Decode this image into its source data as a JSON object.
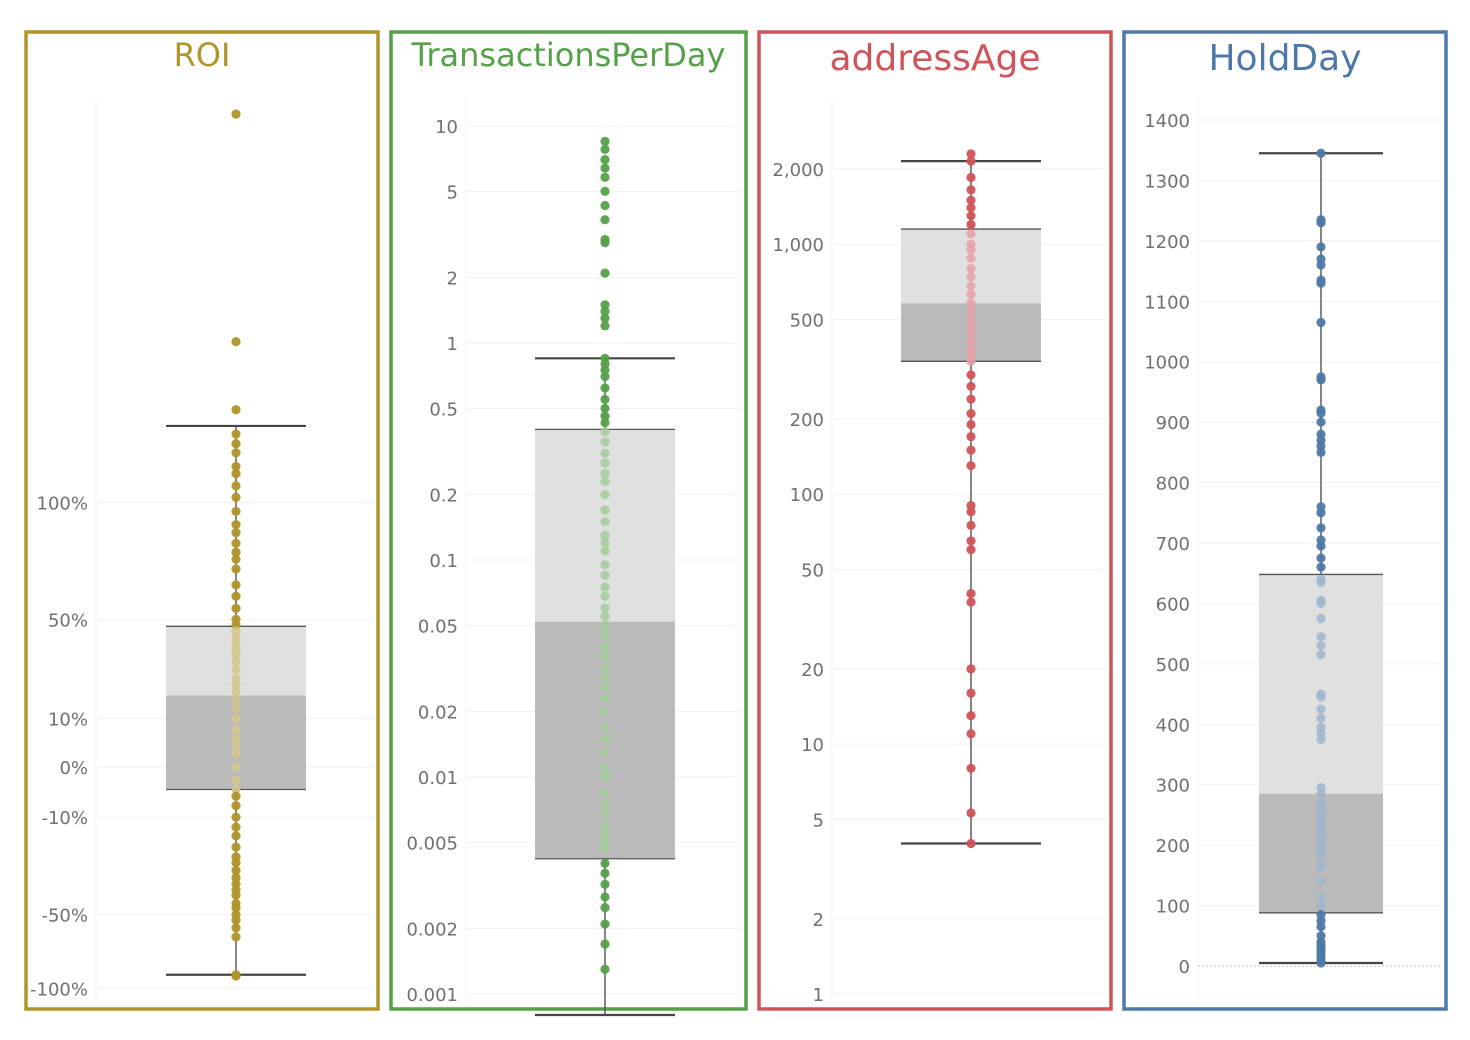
{
  "chart_data": [
    {
      "type": "boxplot",
      "title": "ROI",
      "color": "#b0952a",
      "scale": "symlog",
      "ylim": [
        -100,
        1000
      ],
      "ticks": [
        -100,
        -50,
        -10,
        0,
        10,
        50,
        100
      ],
      "tick_labels": [
        "-100%",
        "-50%",
        "-10%",
        "0%",
        "10%",
        "50%",
        "100%"
      ],
      "box": {
        "lower_whisker": -88,
        "q1": -4,
        "median": 15,
        "q3": 45,
        "upper_whisker": 155
      },
      "points": [
        900,
        250,
        170,
        148,
        140,
        133,
        123,
        118,
        110,
        103,
        95,
        88,
        84,
        79,
        75,
        72,
        68,
        62,
        58,
        54,
        50,
        46,
        42,
        38,
        35,
        32,
        29,
        26,
        23,
        20,
        18,
        16,
        14,
        12,
        10,
        8,
        6,
        4,
        2,
        0,
        -2,
        -4,
        -6,
        -8,
        -10,
        -12,
        -14,
        -17,
        -20,
        -22,
        -25,
        -28,
        -31,
        -34,
        -37,
        -42,
        -45,
        -50,
        -53,
        -57,
        -62,
        -88,
        -89
      ]
    },
    {
      "type": "boxplot",
      "title": "TransactionsPerDay",
      "color": "#55a049",
      "scale": "log",
      "ylim": [
        0.001,
        10
      ],
      "ticks": [
        0.001,
        0.002,
        0.005,
        0.01,
        0.02,
        0.05,
        0.1,
        0.2,
        0.5,
        1,
        2,
        5,
        10
      ],
      "tick_labels": [
        "0.001",
        "0.002",
        "0.005",
        "0.01",
        "0.02",
        "0.05",
        "0.1",
        "0.2",
        "0.5",
        "1",
        "2",
        "5",
        "10"
      ],
      "box": {
        "lower_whisker": 0.0008,
        "q1": 0.0042,
        "median": 0.052,
        "q3": 0.4,
        "upper_whisker": 0.85
      },
      "points": [
        8.5,
        7.8,
        7.0,
        6.4,
        5.8,
        5.0,
        4.3,
        3.7,
        3.0,
        2.9,
        2.1,
        1.5,
        1.4,
        1.3,
        1.2,
        0.85,
        0.8,
        0.75,
        0.7,
        0.62,
        0.55,
        0.5,
        0.46,
        0.43,
        0.39,
        0.35,
        0.31,
        0.28,
        0.25,
        0.23,
        0.2,
        0.17,
        0.15,
        0.13,
        0.12,
        0.11,
        0.095,
        0.085,
        0.075,
        0.068,
        0.06,
        0.055,
        0.05,
        0.045,
        0.04,
        0.036,
        0.032,
        0.029,
        0.026,
        0.023,
        0.02,
        0.017,
        0.015,
        0.013,
        0.011,
        0.01,
        0.0085,
        0.0075,
        0.0068,
        0.006,
        0.0055,
        0.005,
        0.0047,
        0.004,
        0.0036,
        0.0032,
        0.0028,
        0.0025,
        0.0021,
        0.0017,
        0.0013
      ]
    },
    {
      "type": "boxplot",
      "title": "addressAge",
      "color": "#d1535a",
      "scale": "log",
      "ylim": [
        1,
        3500
      ],
      "ticks": [
        1,
        2,
        5,
        10,
        20,
        50,
        100,
        200,
        500,
        1000,
        2000
      ],
      "tick_labels": [
        "1",
        "2",
        "5",
        "10",
        "20",
        "50",
        "100",
        "200",
        "500",
        "1,000",
        "2,000"
      ],
      "box": {
        "lower_whisker": 4,
        "q1": 340,
        "median": 580,
        "q3": 1150,
        "upper_whisker": 2150
      },
      "points": [
        2300,
        2150,
        1850,
        1650,
        1500,
        1400,
        1300,
        1200,
        1100,
        1000,
        950,
        880,
        800,
        740,
        680,
        630,
        580,
        540,
        500,
        470,
        440,
        410,
        380,
        360,
        340,
        300,
        270,
        240,
        210,
        190,
        170,
        150,
        130,
        90,
        85,
        75,
        65,
        60,
        40,
        37,
        20,
        16,
        13,
        11,
        8,
        5.3,
        4
      ]
    },
    {
      "type": "boxplot",
      "title": "HoldDay",
      "color": "#4e79a7",
      "scale": "linear",
      "ylim": [
        -70,
        1420
      ],
      "ticks": [
        0,
        100,
        200,
        300,
        400,
        500,
        600,
        700,
        800,
        900,
        1000,
        1100,
        1200,
        1300,
        1400
      ],
      "tick_labels": [
        "0",
        "100",
        "200",
        "300",
        "400",
        "500",
        "600",
        "700",
        "800",
        "900",
        "1000",
        "1100",
        "1200",
        "1300",
        "1400"
      ],
      "box": {
        "lower_whisker": 5,
        "q1": 88,
        "median": 285,
        "q3": 648,
        "upper_whisker": 1345
      },
      "points": [
        1345,
        1235,
        1230,
        1190,
        1170,
        1160,
        1135,
        1130,
        1065,
        975,
        970,
        920,
        915,
        900,
        880,
        870,
        860,
        850,
        760,
        750,
        725,
        705,
        695,
        675,
        660,
        640,
        635,
        605,
        600,
        575,
        545,
        530,
        515,
        450,
        445,
        425,
        410,
        395,
        385,
        375,
        295,
        285,
        270,
        260,
        250,
        240,
        230,
        220,
        210,
        200,
        190,
        180,
        165,
        140,
        115,
        100,
        85,
        75,
        65,
        50,
        40,
        35,
        30,
        25,
        20,
        15,
        10,
        5
      ]
    }
  ]
}
